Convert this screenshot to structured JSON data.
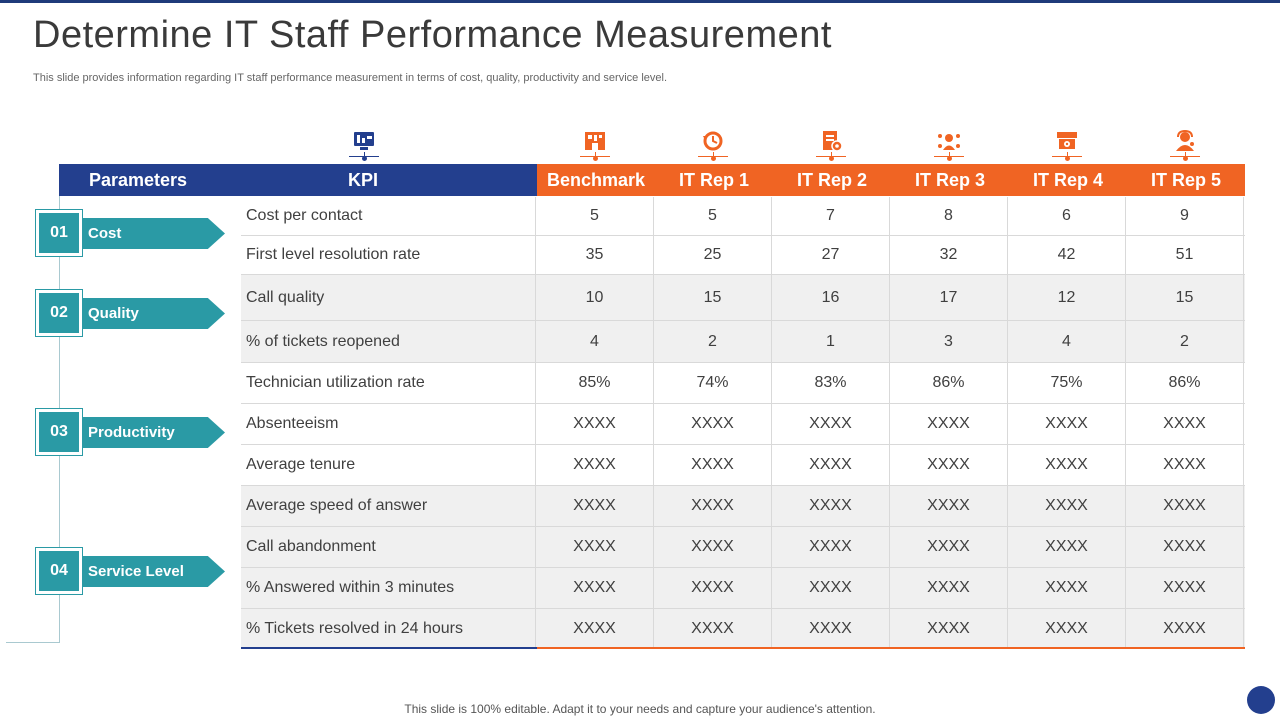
{
  "title": "Determine IT Staff Performance Measurement",
  "subtitle": "This slide provides information regarding IT staff performance measurement in terms of cost, quality, productivity and service level.",
  "headers": {
    "parameters": "Parameters",
    "kpi": "KPI",
    "columns": [
      "Benchmark",
      "IT Rep 1",
      "IT Rep 2",
      "IT Rep 3",
      "IT Rep 4",
      "IT Rep 5"
    ]
  },
  "header_icons": [
    "kpi-dashboard-icon",
    "benchmark-building-icon",
    "history-clock-icon",
    "document-settings-icon",
    "team-network-icon",
    "monitor-settings-icon",
    "support-agent-icon"
  ],
  "parameters": [
    {
      "num": "01",
      "label": "Cost"
    },
    {
      "num": "02",
      "label": "Quality"
    },
    {
      "num": "03",
      "label": "Productivity"
    },
    {
      "num": "04",
      "label": "Service Level"
    }
  ],
  "rows": [
    {
      "kpi": "Cost per contact",
      "values": [
        "5",
        "5",
        "7",
        "8",
        "6",
        "9"
      ]
    },
    {
      "kpi": "First level resolution rate",
      "values": [
        "35",
        "25",
        "27",
        "32",
        "42",
        "51"
      ]
    },
    {
      "kpi": "Call quality",
      "values": [
        "10",
        "15",
        "16",
        "17",
        "12",
        "15"
      ]
    },
    {
      "kpi": "% of tickets reopened",
      "values": [
        "4",
        "2",
        "1",
        "3",
        "4",
        "2"
      ]
    },
    {
      "kpi": "Technician utilization rate",
      "values": [
        "85%",
        "74%",
        "83%",
        "86%",
        "75%",
        "86%"
      ]
    },
    {
      "kpi": "Absenteeism",
      "values": [
        "XXXX",
        "XXXX",
        "XXXX",
        "XXXX",
        "XXXX",
        "XXXX"
      ]
    },
    {
      "kpi": "Average tenure",
      "values": [
        "XXXX",
        "XXXX",
        "XXXX",
        "XXXX",
        "XXXX",
        "XXXX"
      ]
    },
    {
      "kpi": "Average speed of answer",
      "values": [
        "XXXX",
        "XXXX",
        "XXXX",
        "XXXX",
        "XXXX",
        "XXXX"
      ]
    },
    {
      "kpi": "Call abandonment",
      "values": [
        "XXXX",
        "XXXX",
        "XXXX",
        "XXXX",
        "XXXX",
        "XXXX"
      ]
    },
    {
      "kpi": "% Answered within 3 minutes",
      "values": [
        "XXXX",
        "XXXX",
        "XXXX",
        "XXXX",
        "XXXX",
        "XXXX"
      ]
    },
    {
      "kpi": "% Tickets resolved in 24 hours",
      "values": [
        "XXXX",
        "XXXX",
        "XXXX",
        "XXXX",
        "XXXX",
        "XXXX"
      ]
    }
  ],
  "footer": "This slide is 100% editable. Adapt it to your needs and capture your audience's attention.",
  "colors": {
    "blue": "#233f8e",
    "orange": "#f06423",
    "teal": "#2a9aa5"
  }
}
